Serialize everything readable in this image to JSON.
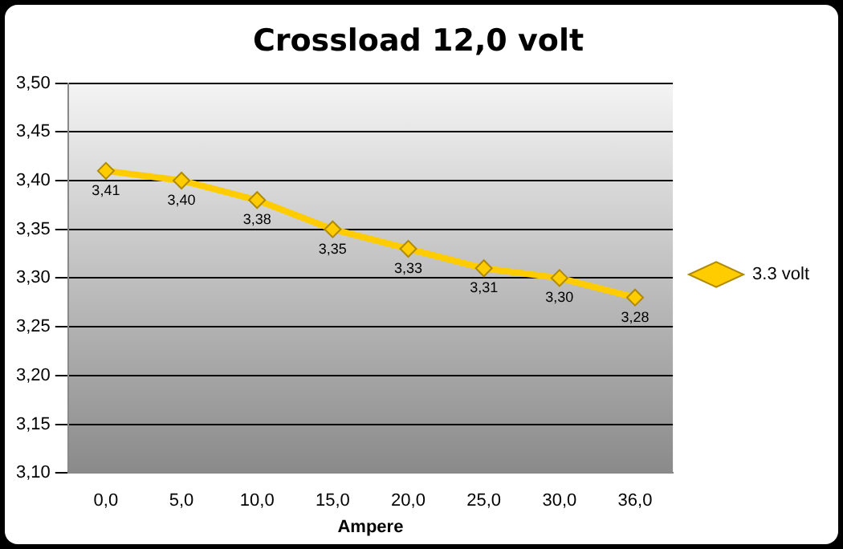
{
  "chart_data": {
    "type": "line",
    "title": "Crossload 12,0 volt",
    "xlabel": "Ampere",
    "categories": [
      "0,0",
      "5,0",
      "10,0",
      "15,0",
      "20,0",
      "25,0",
      "30,0",
      "36,0"
    ],
    "series": [
      {
        "name": "3.3 volt",
        "color": "#ffcc00",
        "values": [
          3.41,
          3.4,
          3.38,
          3.35,
          3.33,
          3.31,
          3.3,
          3.28
        ],
        "value_labels": [
          "3,41",
          "3,40",
          "3,38",
          "3,35",
          "3,33",
          "3,31",
          "3,30",
          "3,28"
        ]
      }
    ],
    "ylim": [
      3.1,
      3.5
    ],
    "yticks": [
      {
        "value": 3.1,
        "label": "3,10"
      },
      {
        "value": 3.15,
        "label": "3,15"
      },
      {
        "value": 3.2,
        "label": "3,20"
      },
      {
        "value": 3.25,
        "label": "3,25"
      },
      {
        "value": 3.3,
        "label": "3,30"
      },
      {
        "value": 3.35,
        "label": "3,35"
      },
      {
        "value": 3.4,
        "label": "3,40"
      },
      {
        "value": 3.45,
        "label": "3,45"
      },
      {
        "value": 3.5,
        "label": "3,50"
      }
    ],
    "grid": "y",
    "legend": "right",
    "marker": "diamond",
    "line_style": "solid"
  }
}
